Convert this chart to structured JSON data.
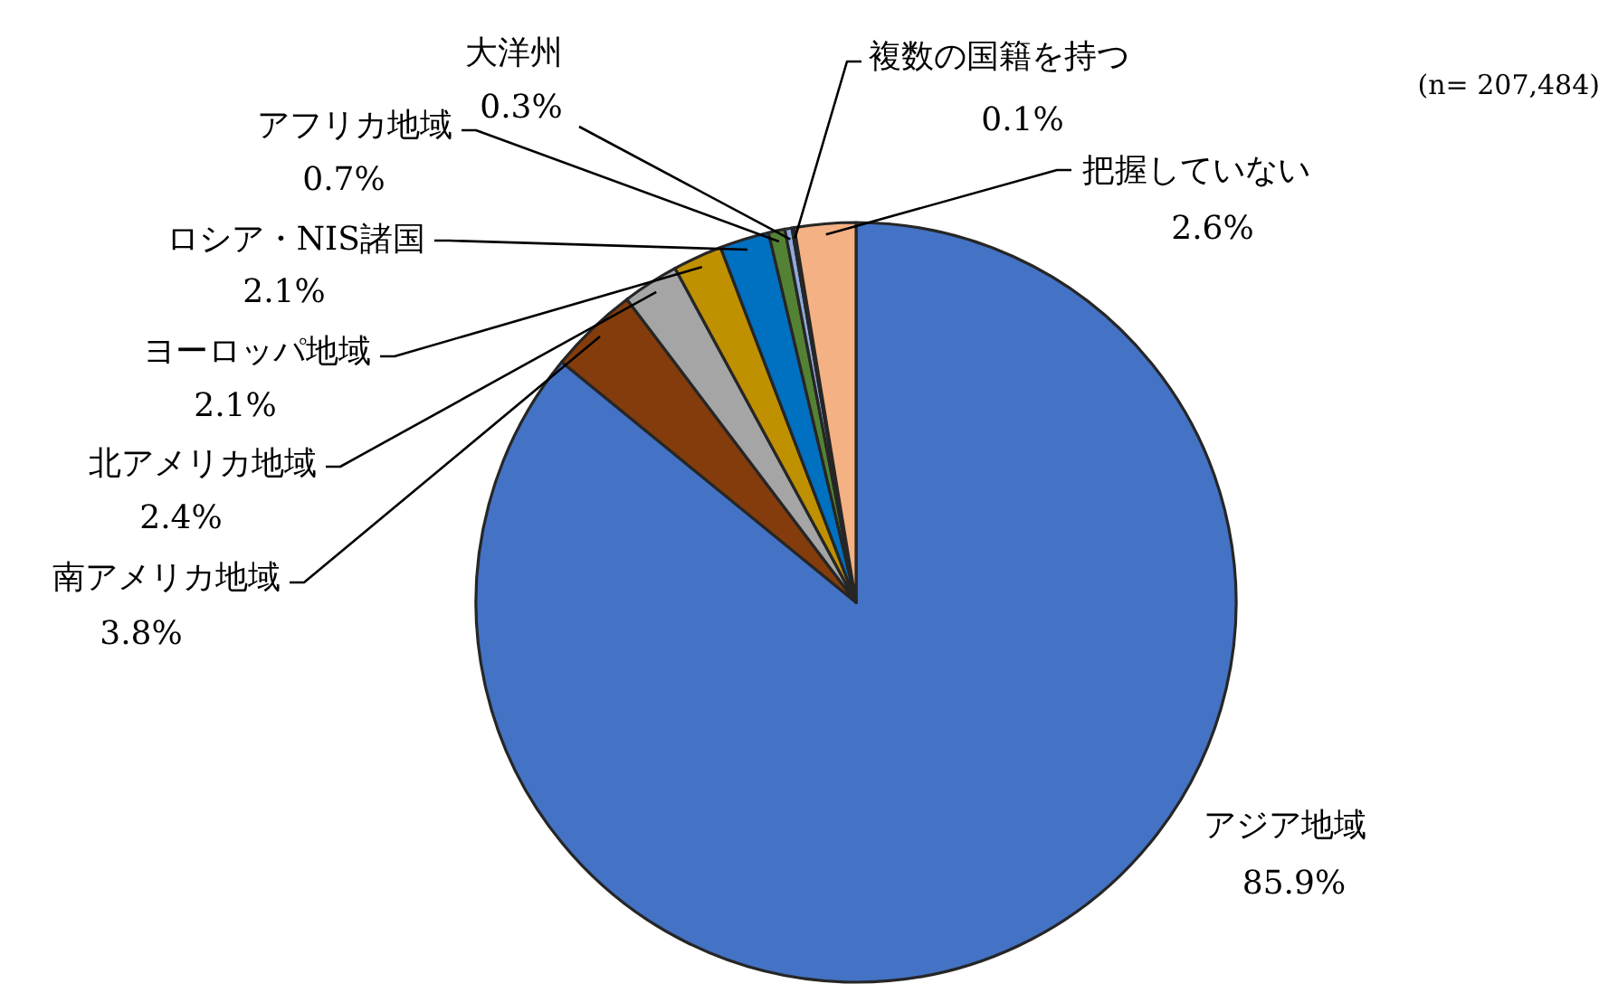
{
  "chart_data": {
    "type": "pie",
    "categories": [
      "アジア地域",
      "南アメリカ地域",
      "北アメリカ地域",
      "ヨーロッパ地域",
      "ロシア・NIS諸国",
      "アフリカ地域",
      "大洋州",
      "複数の国籍を持つ",
      "把握していない"
    ],
    "values": [
      85.9,
      3.8,
      2.4,
      2.1,
      2.1,
      0.7,
      0.3,
      0.1,
      2.6
    ],
    "value_labels": [
      "85.9%",
      "3.8%",
      "2.4%",
      "2.1%",
      "2.1%",
      "0.7%",
      "0.3%",
      "0.1%",
      "2.6%"
    ],
    "colors": [
      "#4472c4",
      "#843c0c",
      "#a5a5a5",
      "#bf9000",
      "#0070c0",
      "#548235",
      "#8faadc",
      "#404040",
      "#f4b183"
    ],
    "annotations": [
      "(n= 207,484)"
    ]
  }
}
